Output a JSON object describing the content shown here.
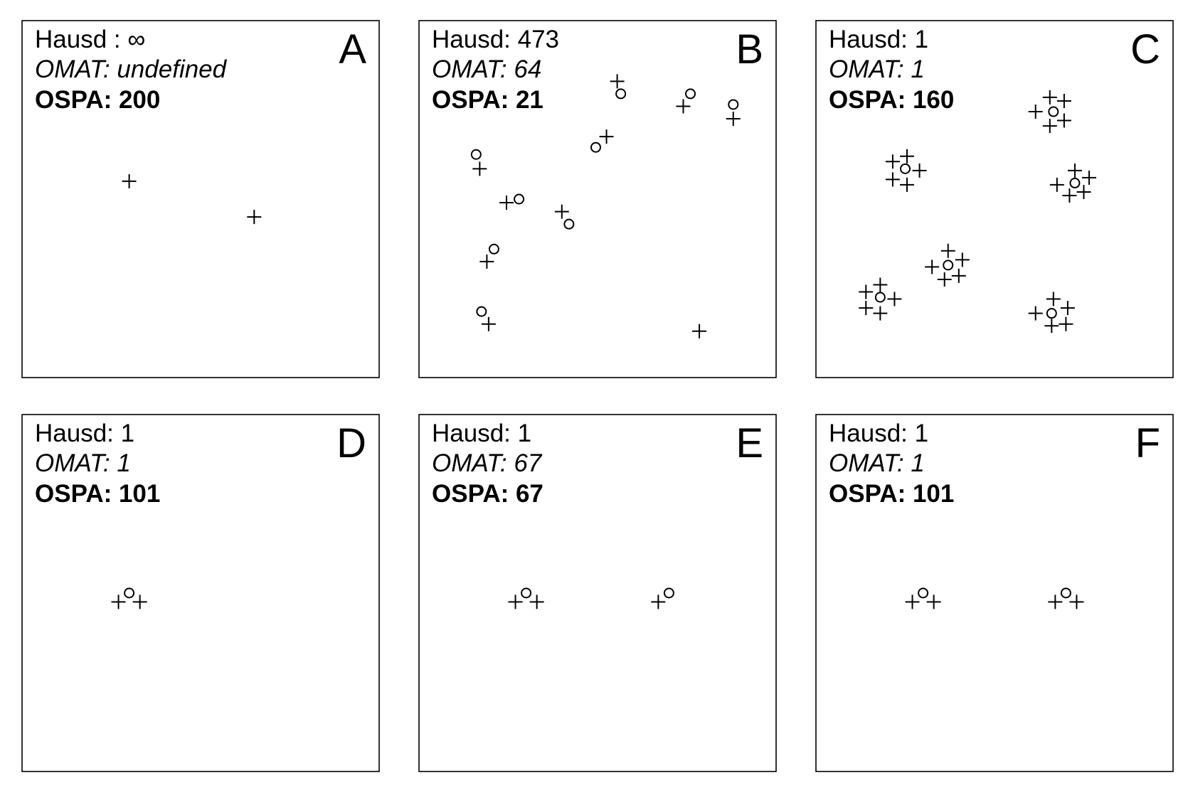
{
  "chart_data": [
    {
      "type": "scatter",
      "panel_label": "A",
      "metrics": {
        "hausdorff": "Hausd : ∞",
        "omat": "OMAT: undefined",
        "ospa": "OSPA: 200"
      },
      "xlim": [
        0,
        100
      ],
      "ylim": [
        0,
        100
      ],
      "series": [
        {
          "marker": "plus",
          "points": [
            [
              30,
              55
            ],
            [
              65,
              45
            ]
          ]
        },
        {
          "marker": "circle",
          "points": []
        }
      ]
    },
    {
      "type": "scatter",
      "panel_label": "B",
      "metrics": {
        "hausdorff": "Hausd: 473",
        "omat": "OMAT: 64",
        "ospa": "OSPA: 21"
      },
      "xlim": [
        0,
        100
      ],
      "ylim": [
        0,
        100
      ],
      "series": [
        {
          "marker": "plus",
          "points": [
            [
              55.5,
              83
            ],
            [
              74,
              76
            ],
            [
              88,
              72.5
            ],
            [
              52.5,
              67.5
            ],
            [
              17,
              58.5
            ],
            [
              24.5,
              49
            ],
            [
              40,
              46.5
            ],
            [
              19,
              32.5
            ],
            [
              19.5,
              15
            ],
            [
              78.5,
              13
            ]
          ]
        },
        {
          "marker": "circle",
          "points": [
            [
              56.5,
              79.5
            ],
            [
              76,
              79.5
            ],
            [
              88,
              76.5
            ],
            [
              49.5,
              64.5
            ],
            [
              16,
              62.5
            ],
            [
              28,
              50
            ],
            [
              42,
              43
            ],
            [
              21,
              36
            ],
            [
              17.5,
              18.5
            ]
          ]
        }
      ]
    },
    {
      "type": "scatter",
      "panel_label": "C",
      "metrics": {
        "hausdorff": "Hausd: 1",
        "omat": "OMAT: 1",
        "ospa": "OSPA: 160"
      },
      "xlim": [
        0,
        100
      ],
      "ylim": [
        0,
        100
      ],
      "series": [
        {
          "marker": "plus",
          "points": [
            [
              65.5,
              78.5
            ],
            [
              69.5,
              77.5
            ],
            [
              61.5,
              74.5
            ],
            [
              69.5,
              72
            ],
            [
              65.5,
              70.5
            ],
            [
              21.5,
              60.5
            ],
            [
              25.5,
              62
            ],
            [
              29,
              58
            ],
            [
              21.5,
              55.5
            ],
            [
              25.5,
              54
            ],
            [
              72.5,
              58
            ],
            [
              76.5,
              56
            ],
            [
              67.5,
              54
            ],
            [
              71,
              51
            ],
            [
              75,
              52
            ],
            [
              37,
              35.5
            ],
            [
              41,
              33
            ],
            [
              32.5,
              31
            ],
            [
              36,
              27.5
            ],
            [
              40,
              28.5
            ],
            [
              14,
              24
            ],
            [
              18,
              26
            ],
            [
              22,
              22
            ],
            [
              14,
              19.5
            ],
            [
              18,
              18
            ],
            [
              66.5,
              22
            ],
            [
              70.5,
              19.5
            ],
            [
              61.5,
              18
            ],
            [
              66,
              14.5
            ],
            [
              70,
              15
            ]
          ]
        },
        {
          "marker": "circle",
          "points": [
            [
              66.5,
              74.5
            ],
            [
              25,
              58.5
            ],
            [
              72.5,
              54.5
            ],
            [
              37,
              31.5
            ],
            [
              18,
              22.5
            ],
            [
              66,
              18
            ]
          ]
        }
      ]
    },
    {
      "type": "scatter",
      "panel_label": "D",
      "metrics": {
        "hausdorff": "Hausd: 1",
        "omat": "OMAT: 1",
        "ospa": "OSPA: 101"
      },
      "xlim": [
        0,
        100
      ],
      "ylim": [
        0,
        100
      ],
      "series": [
        {
          "marker": "plus",
          "points": [
            [
              27,
              47.5
            ],
            [
              33,
              47.5
            ]
          ]
        },
        {
          "marker": "circle",
          "points": [
            [
              30,
              50
            ]
          ]
        }
      ]
    },
    {
      "type": "scatter",
      "panel_label": "E",
      "metrics": {
        "hausdorff": "Hausd: 1",
        "omat": "OMAT: 67",
        "ospa": "OSPA: 67"
      },
      "xlim": [
        0,
        100
      ],
      "ylim": [
        0,
        100
      ],
      "series": [
        {
          "marker": "plus",
          "points": [
            [
              27,
              47.5
            ],
            [
              33,
              47.5
            ],
            [
              67,
              47.5
            ]
          ]
        },
        {
          "marker": "circle",
          "points": [
            [
              30,
              50
            ],
            [
              70,
              50
            ]
          ]
        }
      ]
    },
    {
      "type": "scatter",
      "panel_label": "F",
      "metrics": {
        "hausdorff": "Hausd: 1",
        "omat": "OMAT: 1",
        "ospa": "OSPA: 101"
      },
      "xlim": [
        0,
        100
      ],
      "ylim": [
        0,
        100
      ],
      "series": [
        {
          "marker": "plus",
          "points": [
            [
              27,
              47.5
            ],
            [
              33,
              47.5
            ],
            [
              67,
              47.5
            ],
            [
              73,
              47.5
            ]
          ]
        },
        {
          "marker": "circle",
          "points": [
            [
              30,
              50
            ],
            [
              70,
              50
            ]
          ]
        }
      ]
    }
  ]
}
